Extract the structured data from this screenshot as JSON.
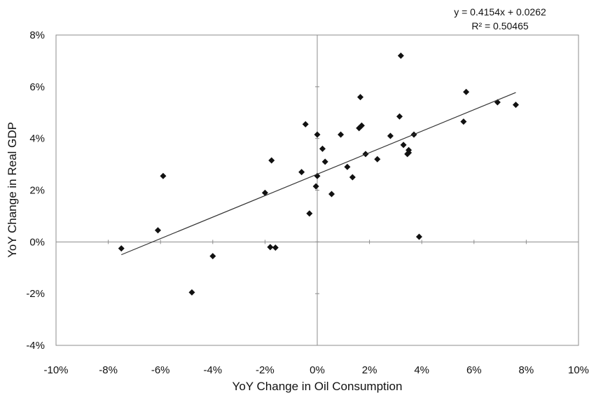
{
  "chart_data": {
    "type": "scatter",
    "xlabel": "YoY Change in Oil Consumption",
    "ylabel": "YoY Change in Real GDP",
    "xlim": [
      -10,
      10
    ],
    "ylim": [
      -4,
      8
    ],
    "x_ticks": [
      -10,
      -8,
      -6,
      -4,
      -2,
      0,
      2,
      4,
      6,
      8,
      10
    ],
    "y_ticks": [
      -4,
      -2,
      0,
      2,
      4,
      6,
      8
    ],
    "x_tick_labels": [
      "-10%",
      "-8%",
      "-6%",
      "-4%",
      "-2%",
      "0%",
      "2%",
      "4%",
      "6%",
      "8%",
      "10%"
    ],
    "y_tick_labels": [
      "-4%",
      "-2%",
      "0%",
      "2%",
      "4%",
      "6%",
      "8%"
    ],
    "grid": false,
    "marker": "diamond",
    "annotations": {
      "equation": "y = 0.4154x + 0.0262",
      "r_squared": "R² = 0.50465"
    },
    "trendline": {
      "slope": 0.4154,
      "intercept": 2.62,
      "x_range": [
        -7.5,
        7.6
      ]
    },
    "points": [
      [
        -7.5,
        -0.25
      ],
      [
        -6.1,
        0.45
      ],
      [
        -5.9,
        2.55
      ],
      [
        -4.8,
        -1.95
      ],
      [
        -4.0,
        -0.55
      ],
      [
        -2.0,
        1.9
      ],
      [
        -1.8,
        -0.2
      ],
      [
        -1.75,
        3.15
      ],
      [
        -1.6,
        -0.22
      ],
      [
        -0.6,
        2.7
      ],
      [
        -0.45,
        4.55
      ],
      [
        -0.3,
        1.1
      ],
      [
        -0.05,
        2.15
      ],
      [
        0.0,
        4.15
      ],
      [
        0.0,
        2.55
      ],
      [
        0.2,
        3.6
      ],
      [
        0.3,
        3.1
      ],
      [
        0.55,
        1.85
      ],
      [
        0.9,
        4.15
      ],
      [
        1.15,
        2.9
      ],
      [
        1.35,
        2.5
      ],
      [
        1.6,
        4.4
      ],
      [
        1.65,
        5.6
      ],
      [
        1.7,
        4.5
      ],
      [
        1.85,
        3.4
      ],
      [
        2.3,
        3.2
      ],
      [
        2.8,
        4.1
      ],
      [
        3.15,
        4.85
      ],
      [
        3.2,
        7.2
      ],
      [
        3.3,
        3.75
      ],
      [
        3.45,
        3.4
      ],
      [
        3.5,
        3.55
      ],
      [
        3.5,
        3.45
      ],
      [
        3.7,
        4.15
      ],
      [
        3.9,
        0.2
      ],
      [
        5.6,
        4.65
      ],
      [
        5.7,
        5.8
      ],
      [
        6.9,
        5.4
      ],
      [
        7.6,
        5.3
      ]
    ]
  }
}
